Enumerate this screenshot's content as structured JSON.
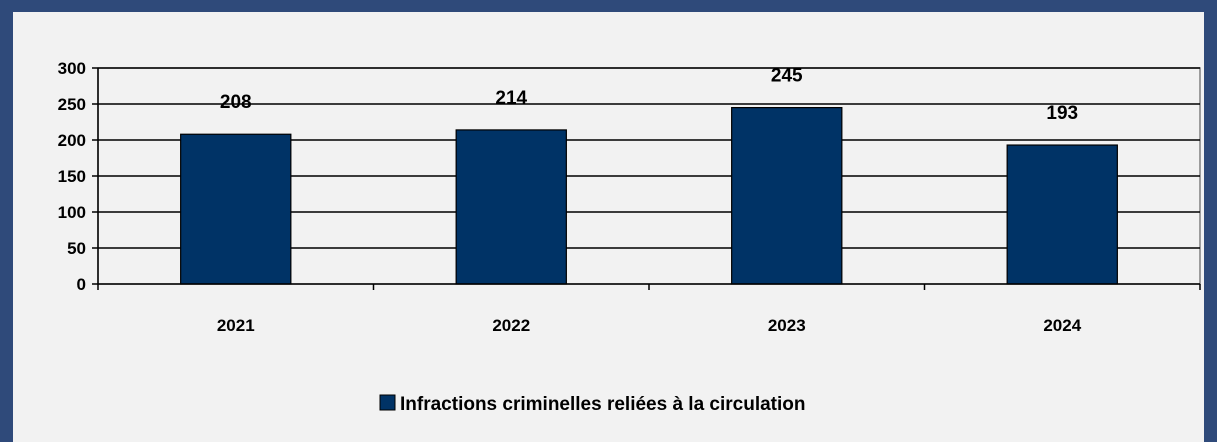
{
  "chart_data": {
    "type": "bar",
    "categories": [
      "2021",
      "2022",
      "2023",
      "2024"
    ],
    "series": [
      {
        "name": "Infractions criminelles reliées à la circulation",
        "values": [
          208,
          214,
          245,
          193
        ],
        "color": "#003366"
      }
    ],
    "data_labels": [
      "208",
      "214",
      "245",
      "193"
    ],
    "yticks": [
      0,
      50,
      100,
      150,
      200,
      250,
      300
    ],
    "ylim": [
      0,
      300
    ],
    "grid": true,
    "legend_position": "bottom",
    "title": "",
    "xlabel": "",
    "ylabel": ""
  },
  "legend": {
    "label": "Infractions criminelles reliées à la circulation",
    "swatch_color": "#003366"
  },
  "colors": {
    "frame": "#2f4a7a",
    "background": "#f2f2f2",
    "bar": "#003366",
    "grid": "#000000"
  }
}
